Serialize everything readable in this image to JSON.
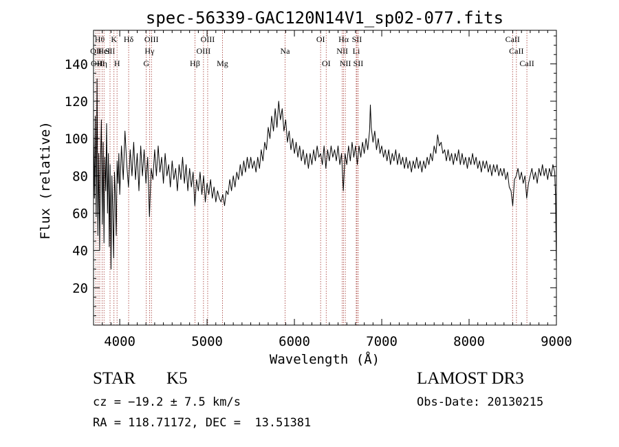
{
  "chart_data": {
    "type": "line",
    "title": "spec-56339-GAC120N14V1_sp02-077.fits",
    "xlabel": "Wavelength (Å)",
    "ylabel": "Flux (relative)",
    "xlim": [
      3700,
      9000
    ],
    "ylim": [
      0,
      158
    ],
    "xticks": [
      4000,
      5000,
      6000,
      7000,
      8000,
      9000
    ],
    "yticks": [
      20,
      40,
      60,
      80,
      100,
      120,
      140
    ],
    "grid": false,
    "legend": "none",
    "line_color": "#000000",
    "marker_color": "#a0302a",
    "lines": [
      {
        "wl": 3727,
        "label": "OII",
        "row": 1
      },
      {
        "wl": 3750,
        "label": "OIII",
        "row": 2
      },
      {
        "wl": 3771,
        "label": "Hθ",
        "row": 0
      },
      {
        "wl": 3798,
        "label": "Hη",
        "row": 2
      },
      {
        "wl": 3820,
        "label": "HeI",
        "row": 1
      },
      {
        "wl": 3889,
        "label": "SII",
        "row": 1
      },
      {
        "wl": 3934,
        "label": "K",
        "row": 0
      },
      {
        "wl": 3969,
        "label": "H",
        "row": 2
      },
      {
        "wl": 4102,
        "label": "Hδ",
        "row": 0
      },
      {
        "wl": 4304,
        "label": "G",
        "row": 2
      },
      {
        "wl": 4341,
        "label": "Hγ",
        "row": 1
      },
      {
        "wl": 4363,
        "label": "OIII",
        "row": 0
      },
      {
        "wl": 4861,
        "label": "Hβ",
        "row": 2
      },
      {
        "wl": 4959,
        "label": "OIII",
        "row": 1
      },
      {
        "wl": 5007,
        "label": "OIII",
        "row": 0
      },
      {
        "wl": 5176,
        "label": "Mg",
        "row": 2
      },
      {
        "wl": 5893,
        "label": "Na",
        "row": 1
      },
      {
        "wl": 6300,
        "label": "OI",
        "row": 0
      },
      {
        "wl": 6364,
        "label": "OI",
        "row": 2
      },
      {
        "wl": 6548,
        "label": "NII",
        "row": 1
      },
      {
        "wl": 6563,
        "label": "Hα",
        "row": 0
      },
      {
        "wl": 6583,
        "label": "NII",
        "row": 2
      },
      {
        "wl": 6708,
        "label": "Li",
        "row": 1
      },
      {
        "wl": 6716,
        "label": "SII",
        "row": 0
      },
      {
        "wl": 6731,
        "label": "SII",
        "row": 2
      },
      {
        "wl": 8498,
        "label": "CaII",
        "row": 0
      },
      {
        "wl": 8542,
        "label": "CaII",
        "row": 1
      },
      {
        "wl": 8662,
        "label": "CaII",
        "row": 2
      }
    ],
    "spectrum": [
      [
        3700,
        104
      ],
      [
        3710,
        68
      ],
      [
        3720,
        112
      ],
      [
        3730,
        58
      ],
      [
        3740,
        132
      ],
      [
        3750,
        48
      ],
      [
        3760,
        92
      ],
      [
        3770,
        40
      ],
      [
        3780,
        88
      ],
      [
        3790,
        110
      ],
      [
        3800,
        54
      ],
      [
        3810,
        98
      ],
      [
        3820,
        44
      ],
      [
        3830,
        90
      ],
      [
        3840,
        72
      ],
      [
        3850,
        108
      ],
      [
        3860,
        60
      ],
      [
        3870,
        92
      ],
      [
        3880,
        42
      ],
      [
        3890,
        86
      ],
      [
        3900,
        30
      ],
      [
        3910,
        80
      ],
      [
        3920,
        62
      ],
      [
        3930,
        36
      ],
      [
        3940,
        82
      ],
      [
        3950,
        70
      ],
      [
        3960,
        48
      ],
      [
        3970,
        88
      ],
      [
        3980,
        76
      ],
      [
        3990,
        92
      ],
      [
        4000,
        70
      ],
      [
        4020,
        96
      ],
      [
        4040,
        78
      ],
      [
        4060,
        104
      ],
      [
        4080,
        86
      ],
      [
        4100,
        74
      ],
      [
        4120,
        94
      ],
      [
        4140,
        80
      ],
      [
        4160,
        98
      ],
      [
        4180,
        78
      ],
      [
        4200,
        92
      ],
      [
        4220,
        72
      ],
      [
        4240,
        96
      ],
      [
        4260,
        80
      ],
      [
        4280,
        94
      ],
      [
        4300,
        76
      ],
      [
        4320,
        90
      ],
      [
        4340,
        58
      ],
      [
        4360,
        84
      ],
      [
        4380,
        78
      ],
      [
        4400,
        94
      ],
      [
        4420,
        80
      ],
      [
        4440,
        96
      ],
      [
        4460,
        82
      ],
      [
        4480,
        90
      ],
      [
        4500,
        76
      ],
      [
        4520,
        92
      ],
      [
        4540,
        80
      ],
      [
        4560,
        86
      ],
      [
        4580,
        74
      ],
      [
        4600,
        88
      ],
      [
        4620,
        78
      ],
      [
        4640,
        84
      ],
      [
        4660,
        72
      ],
      [
        4680,
        86
      ],
      [
        4700,
        78
      ],
      [
        4720,
        90
      ],
      [
        4740,
        76
      ],
      [
        4760,
        86
      ],
      [
        4780,
        72
      ],
      [
        4800,
        84
      ],
      [
        4820,
        74
      ],
      [
        4840,
        82
      ],
      [
        4860,
        64
      ],
      [
        4880,
        78
      ],
      [
        4900,
        72
      ],
      [
        4920,
        82
      ],
      [
        4940,
        70
      ],
      [
        4960,
        80
      ],
      [
        4980,
        66
      ],
      [
        5000,
        76
      ],
      [
        5020,
        70
      ],
      [
        5040,
        78
      ],
      [
        5060,
        68
      ],
      [
        5080,
        74
      ],
      [
        5100,
        66
      ],
      [
        5120,
        72
      ],
      [
        5140,
        68
      ],
      [
        5160,
        66
      ],
      [
        5180,
        70
      ],
      [
        5200,
        64
      ],
      [
        5220,
        72
      ],
      [
        5240,
        70
      ],
      [
        5260,
        78
      ],
      [
        5280,
        72
      ],
      [
        5300,
        80
      ],
      [
        5320,
        74
      ],
      [
        5340,
        82
      ],
      [
        5360,
        78
      ],
      [
        5380,
        86
      ],
      [
        5400,
        80
      ],
      [
        5420,
        88
      ],
      [
        5440,
        82
      ],
      [
        5460,
        90
      ],
      [
        5480,
        84
      ],
      [
        5500,
        90
      ],
      [
        5520,
        84
      ],
      [
        5540,
        88
      ],
      [
        5560,
        82
      ],
      [
        5580,
        90
      ],
      [
        5600,
        84
      ],
      [
        5620,
        94
      ],
      [
        5640,
        88
      ],
      [
        5660,
        98
      ],
      [
        5680,
        94
      ],
      [
        5700,
        106
      ],
      [
        5720,
        100
      ],
      [
        5740,
        112
      ],
      [
        5760,
        104
      ],
      [
        5780,
        116
      ],
      [
        5800,
        106
      ],
      [
        5820,
        120
      ],
      [
        5840,
        110
      ],
      [
        5860,
        116
      ],
      [
        5880,
        104
      ],
      [
        5900,
        110
      ],
      [
        5920,
        98
      ],
      [
        5940,
        104
      ],
      [
        5960,
        94
      ],
      [
        5980,
        100
      ],
      [
        6000,
        92
      ],
      [
        6020,
        98
      ],
      [
        6040,
        90
      ],
      [
        6060,
        96
      ],
      [
        6080,
        88
      ],
      [
        6100,
        94
      ],
      [
        6120,
        86
      ],
      [
        6140,
        92
      ],
      [
        6160,
        84
      ],
      [
        6180,
        92
      ],
      [
        6200,
        86
      ],
      [
        6220,
        94
      ],
      [
        6240,
        88
      ],
      [
        6260,
        96
      ],
      [
        6280,
        90
      ],
      [
        6300,
        92
      ],
      [
        6320,
        86
      ],
      [
        6340,
        96
      ],
      [
        6360,
        84
      ],
      [
        6380,
        94
      ],
      [
        6400,
        88
      ],
      [
        6420,
        96
      ],
      [
        6440,
        90
      ],
      [
        6460,
        94
      ],
      [
        6480,
        88
      ],
      [
        6500,
        96
      ],
      [
        6520,
        86
      ],
      [
        6540,
        92
      ],
      [
        6560,
        72
      ],
      [
        6580,
        92
      ],
      [
        6600,
        86
      ],
      [
        6620,
        96
      ],
      [
        6640,
        88
      ],
      [
        6660,
        98
      ],
      [
        6680,
        90
      ],
      [
        6700,
        96
      ],
      [
        6720,
        86
      ],
      [
        6740,
        96
      ],
      [
        6760,
        90
      ],
      [
        6780,
        98
      ],
      [
        6800,
        92
      ],
      [
        6820,
        100
      ],
      [
        6840,
        94
      ],
      [
        6860,
        104
      ],
      [
        6870,
        118
      ],
      [
        6880,
        106
      ],
      [
        6900,
        98
      ],
      [
        6920,
        104
      ],
      [
        6940,
        94
      ],
      [
        6960,
        100
      ],
      [
        6980,
        92
      ],
      [
        7000,
        96
      ],
      [
        7020,
        90
      ],
      [
        7040,
        94
      ],
      [
        7060,
        88
      ],
      [
        7080,
        94
      ],
      [
        7100,
        86
      ],
      [
        7120,
        92
      ],
      [
        7140,
        88
      ],
      [
        7160,
        94
      ],
      [
        7180,
        86
      ],
      [
        7200,
        92
      ],
      [
        7220,
        86
      ],
      [
        7240,
        90
      ],
      [
        7260,
        84
      ],
      [
        7280,
        90
      ],
      [
        7300,
        84
      ],
      [
        7320,
        88
      ],
      [
        7340,
        82
      ],
      [
        7360,
        88
      ],
      [
        7380,
        84
      ],
      [
        7400,
        90
      ],
      [
        7420,
        84
      ],
      [
        7440,
        88
      ],
      [
        7460,
        82
      ],
      [
        7480,
        88
      ],
      [
        7500,
        84
      ],
      [
        7520,
        90
      ],
      [
        7540,
        86
      ],
      [
        7560,
        92
      ],
      [
        7580,
        88
      ],
      [
        7600,
        96
      ],
      [
        7620,
        92
      ],
      [
        7640,
        102
      ],
      [
        7660,
        96
      ],
      [
        7680,
        98
      ],
      [
        7700,
        92
      ],
      [
        7720,
        94
      ],
      [
        7740,
        88
      ],
      [
        7760,
        94
      ],
      [
        7780,
        88
      ],
      [
        7800,
        92
      ],
      [
        7820,
        86
      ],
      [
        7840,
        92
      ],
      [
        7860,
        88
      ],
      [
        7880,
        94
      ],
      [
        7900,
        86
      ],
      [
        7920,
        92
      ],
      [
        7940,
        86
      ],
      [
        7960,
        90
      ],
      [
        7980,
        84
      ],
      [
        8000,
        90
      ],
      [
        8020,
        86
      ],
      [
        8040,
        92
      ],
      [
        8060,
        86
      ],
      [
        8080,
        90
      ],
      [
        8100,
        84
      ],
      [
        8120,
        88
      ],
      [
        8140,
        82
      ],
      [
        8160,
        88
      ],
      [
        8180,
        84
      ],
      [
        8200,
        88
      ],
      [
        8220,
        82
      ],
      [
        8240,
        86
      ],
      [
        8260,
        80
      ],
      [
        8280,
        86
      ],
      [
        8300,
        82
      ],
      [
        8320,
        86
      ],
      [
        8340,
        80
      ],
      [
        8360,
        84
      ],
      [
        8380,
        80
      ],
      [
        8400,
        84
      ],
      [
        8420,
        78
      ],
      [
        8440,
        82
      ],
      [
        8460,
        74
      ],
      [
        8480,
        72
      ],
      [
        8500,
        64
      ],
      [
        8520,
        78
      ],
      [
        8540,
        80
      ],
      [
        8560,
        84
      ],
      [
        8580,
        78
      ],
      [
        8600,
        82
      ],
      [
        8620,
        76
      ],
      [
        8640,
        80
      ],
      [
        8660,
        68
      ],
      [
        8680,
        76
      ],
      [
        8700,
        80
      ],
      [
        8720,
        84
      ],
      [
        8740,
        78
      ],
      [
        8760,
        82
      ],
      [
        8780,
        76
      ],
      [
        8800,
        84
      ],
      [
        8820,
        80
      ],
      [
        8840,
        86
      ],
      [
        8860,
        80
      ],
      [
        8880,
        84
      ],
      [
        8900,
        78
      ],
      [
        8920,
        84
      ],
      [
        8940,
        80
      ],
      [
        8960,
        86
      ],
      [
        8980,
        82
      ],
      [
        8990,
        70
      ],
      [
        9000,
        30
      ]
    ]
  },
  "footer": {
    "object_class": "STAR",
    "subclass": "K5",
    "survey": "LAMOST DR3",
    "cz": "cz = −19.2 ± 7.5 km/s",
    "obs_date": "Obs-Date: 20130215",
    "radec": "RA = 118.71172, DEC =  13.51381"
  }
}
